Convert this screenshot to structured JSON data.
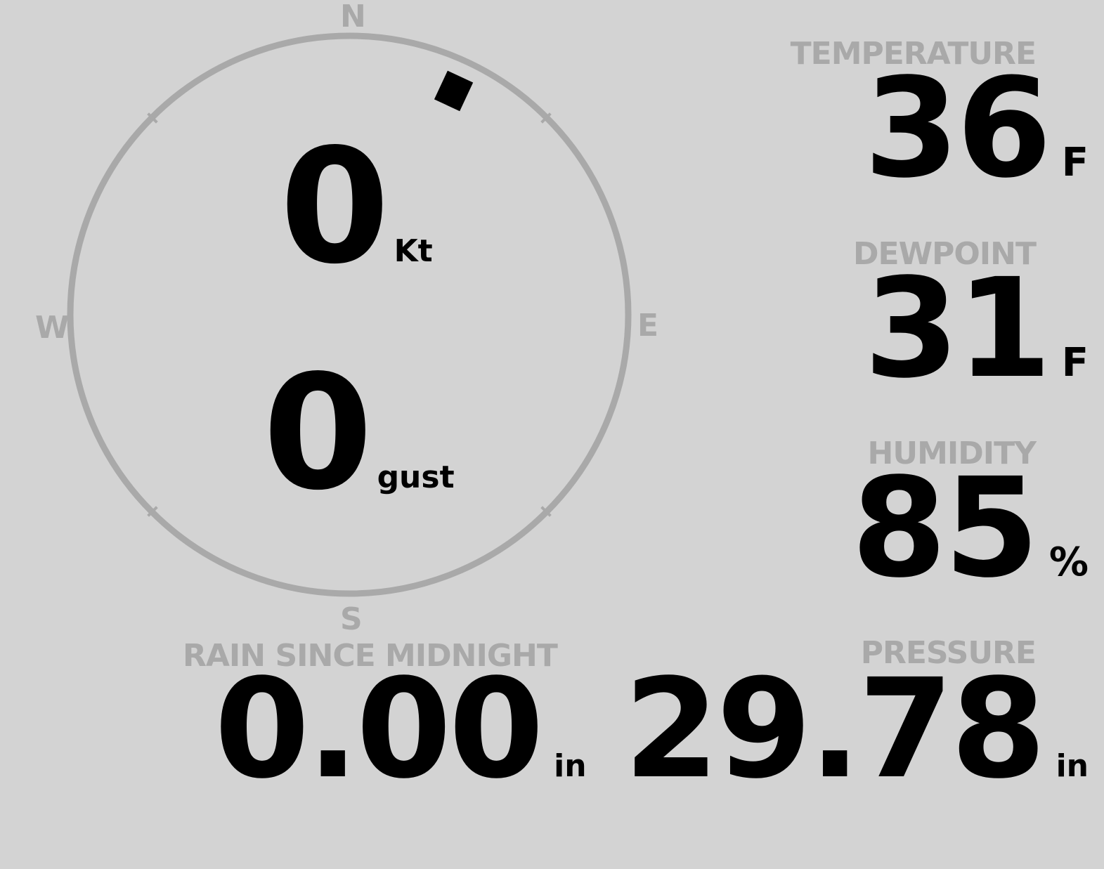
{
  "wind": {
    "speed": "0",
    "speed_unit": "Kt",
    "gust": "0",
    "gust_unit": "gust",
    "direction_deg": 25,
    "cardinals": {
      "n": "N",
      "e": "E",
      "s": "S",
      "w": "W"
    }
  },
  "temperature": {
    "label": "TEMPERATURE",
    "value": "36",
    "unit": "F"
  },
  "dewpoint": {
    "label": "DEWPOINT",
    "value": "31",
    "unit": "F"
  },
  "humidity": {
    "label": "HUMIDITY",
    "value": "85",
    "unit": "%"
  },
  "pressure": {
    "label": "PRESSURE",
    "value": "29.78",
    "unit": "in"
  },
  "rain": {
    "label": "RAIN SINCE MIDNIGHT",
    "value": "0.00",
    "unit": "in"
  },
  "colors": {
    "background": "#d3d3d3",
    "label": "#a9a9a9",
    "value": "#000000"
  }
}
